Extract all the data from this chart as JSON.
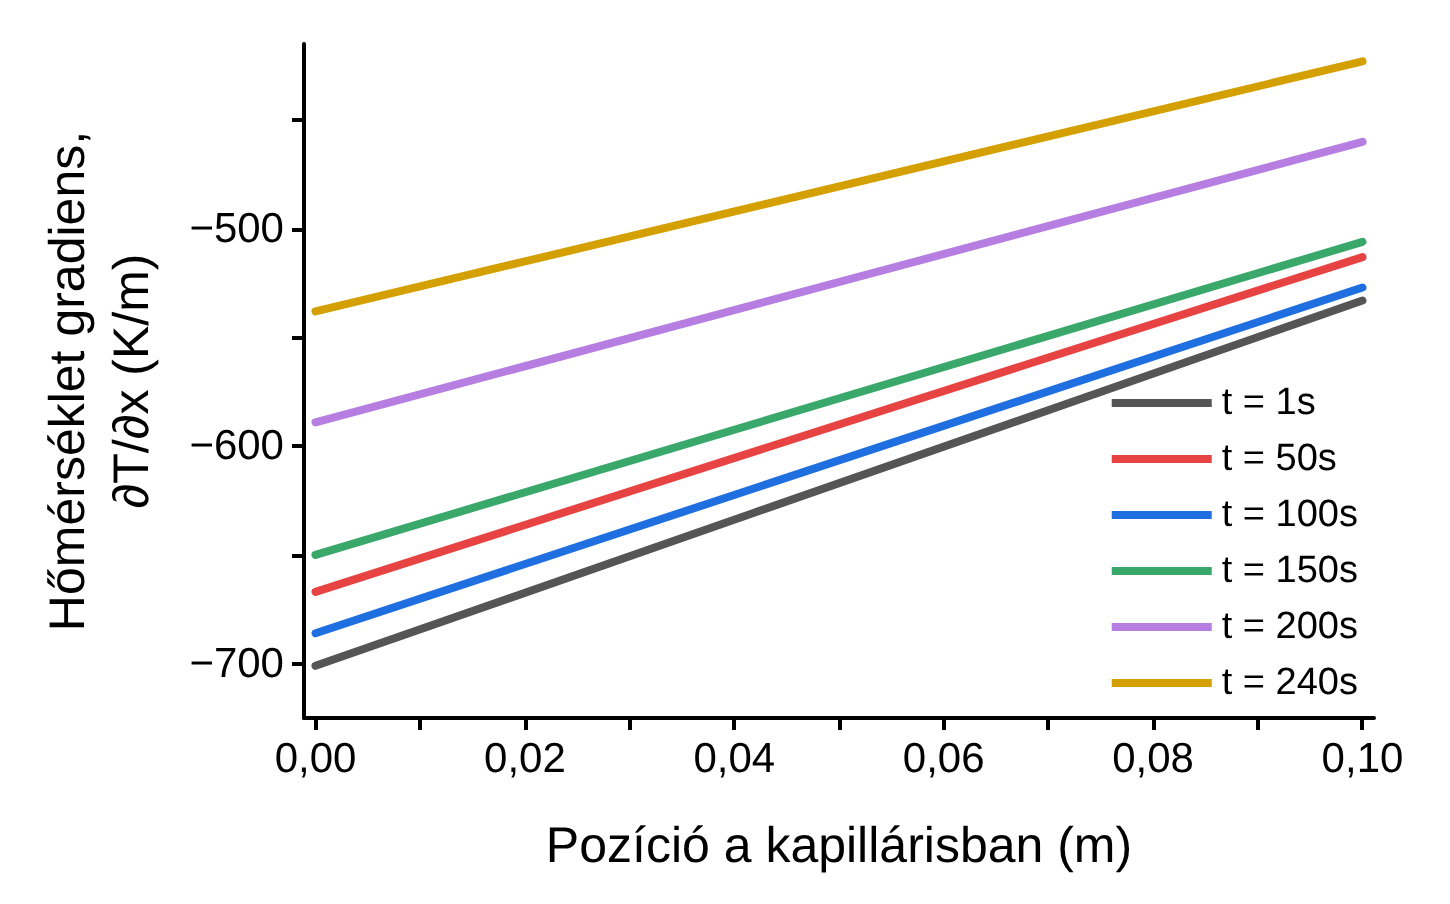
{
  "chart_data": {
    "type": "line",
    "xlabel": "Pozíció a kapillárisban (m)",
    "ylabel": "Hőmérséklet gradiens,\n∂T/∂x (K/m)",
    "x": [
      0,
      0.1
    ],
    "series": [
      {
        "name": "t = 1s",
        "color": "#555555",
        "values": [
          -701,
          -533
        ]
      },
      {
        "name": "t = 50s",
        "color": "#e84343",
        "values": [
          -667,
          -513
        ]
      },
      {
        "name": "t = 100s",
        "color": "#1f6fe0",
        "values": [
          -686,
          -527
        ]
      },
      {
        "name": "t = 150s",
        "color": "#3aa86a",
        "values": [
          -650,
          -506
        ]
      },
      {
        "name": "t = 200s",
        "color": "#b57ee0",
        "values": [
          -589,
          -460
        ]
      },
      {
        "name": "t = 240s",
        "color": "#d4a000",
        "values": [
          -538,
          -423
        ]
      }
    ],
    "xlim": [
      -0.0011,
      0.1011
    ],
    "xticks": [
      {
        "value": 0,
        "label": "0,00"
      },
      {
        "value": 0.01,
        "label": null
      },
      {
        "value": 0.02,
        "label": "0,02"
      },
      {
        "value": 0.03,
        "label": null
      },
      {
        "value": 0.04,
        "label": "0,04"
      },
      {
        "value": 0.05,
        "label": null
      },
      {
        "value": 0.06,
        "label": "0,06"
      },
      {
        "value": 0.07,
        "label": null
      },
      {
        "value": 0.08,
        "label": "0,08"
      },
      {
        "value": 0.09,
        "label": null
      },
      {
        "value": 0.1,
        "label": "0,10"
      }
    ],
    "ylim": [
      -725,
      -415
    ],
    "yticks": [
      {
        "value": -700,
        "label": "−700"
      },
      {
        "value": -650,
        "label": null
      },
      {
        "value": -600,
        "label": "−600"
      },
      {
        "value": -550,
        "label": null
      },
      {
        "value": -500,
        "label": "−500"
      },
      {
        "value": -450,
        "label": null
      }
    ],
    "grid": false,
    "legend": "bottom right",
    "marker": "none",
    "line_style": "solid"
  }
}
